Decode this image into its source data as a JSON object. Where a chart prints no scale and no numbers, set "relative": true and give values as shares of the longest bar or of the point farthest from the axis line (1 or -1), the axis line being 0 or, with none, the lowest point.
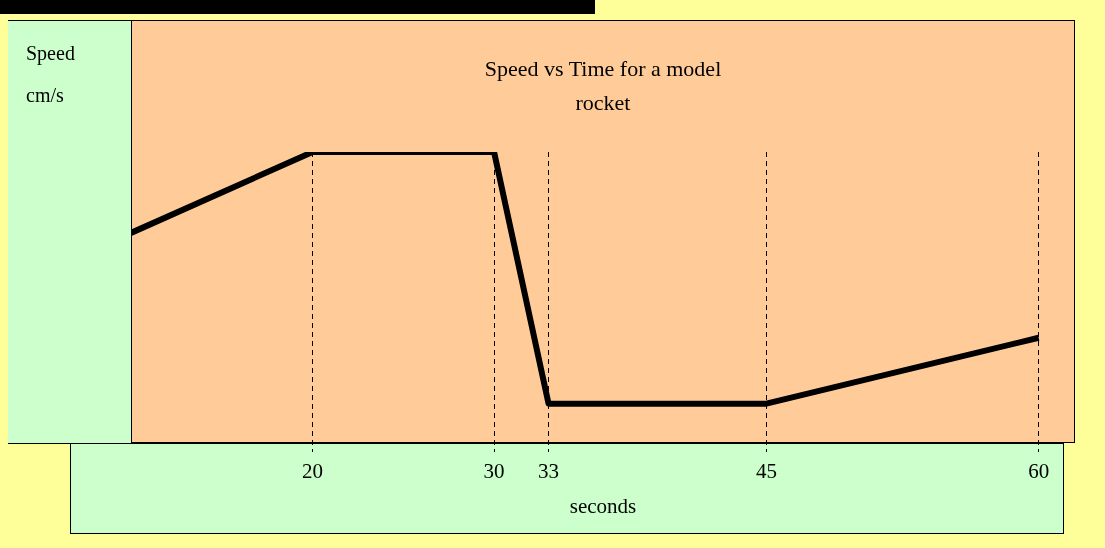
{
  "chart_data": {
    "type": "line",
    "title": "Speed vs Time for a model rocket",
    "xlabel": "seconds",
    "ylabel": "Speed cm/s",
    "x": [
      10,
      20,
      30,
      33,
      45,
      60
    ],
    "series": [
      {
        "color": "#000000",
        "values": [
          0.73,
          1,
          1,
          0.16,
          0.16,
          0.38
        ]
      }
    ],
    "relative": true,
    "xlim": [
      10,
      62
    ],
    "xticks": [
      20,
      30,
      33,
      45,
      60
    ],
    "grid": "x",
    "marker": "none",
    "line_style": "solid"
  }
}
